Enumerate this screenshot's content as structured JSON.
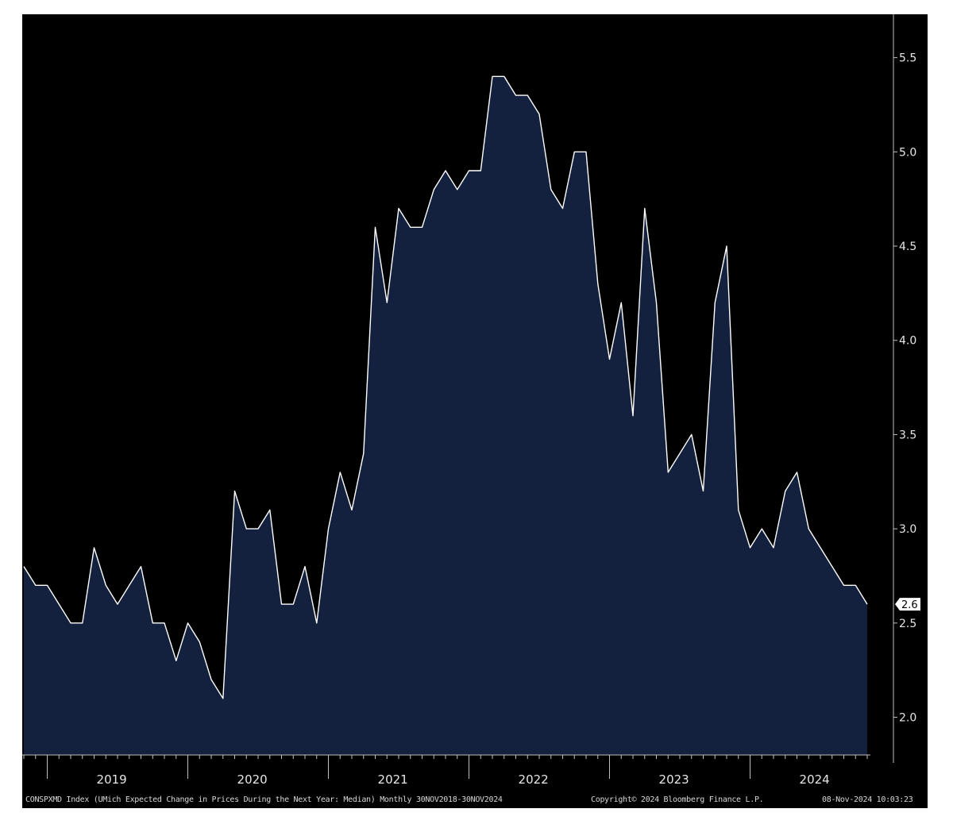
{
  "chart_data": {
    "type": "area",
    "frequency": "Monthly",
    "x_start": "2018-11",
    "x_end": "2024-11",
    "x_tick_labels": [
      "2019",
      "2020",
      "2021",
      "2022",
      "2023",
      "2024"
    ],
    "y_ticks": [
      2.0,
      2.5,
      3.0,
      3.5,
      4.0,
      4.5,
      5.0,
      5.5
    ],
    "ylim": [
      1.8,
      5.73
    ],
    "last_value_label": "2.6",
    "grid": false,
    "series": [
      {
        "values": [
          2.8,
          2.7,
          2.7,
          2.6,
          2.5,
          2.5,
          2.9,
          2.7,
          2.6,
          2.7,
          2.8,
          2.5,
          2.5,
          2.3,
          2.5,
          2.4,
          2.2,
          2.1,
          3.2,
          3.0,
          3.0,
          3.1,
          2.6,
          2.6,
          2.8,
          2.5,
          3.0,
          3.3,
          3.1,
          3.4,
          4.6,
          4.2,
          4.7,
          4.6,
          4.6,
          4.8,
          4.9,
          4.8,
          4.9,
          4.9,
          5.4,
          5.4,
          5.3,
          5.3,
          5.2,
          4.8,
          4.7,
          5.0,
          5.0,
          4.3,
          3.9,
          4.2,
          3.6,
          4.7,
          4.2,
          3.3,
          3.4,
          3.5,
          3.2,
          4.2,
          4.5,
          3.1,
          2.9,
          3.0,
          2.9,
          3.2,
          3.3,
          3.0,
          2.9,
          2.8,
          2.7,
          2.7,
          2.6
        ]
      }
    ]
  },
  "footer": {
    "description": "CONSPXMD Index (UMich Expected Change in Prices During the Next Year: Median)  Monthly 30NOV2018-30NOV2024",
    "copyright": "Copyright© 2024 Bloomberg Finance L.P.",
    "timestamp": "08-Nov-2024 10:03:23"
  },
  "colors": {
    "background": "#000000",
    "area_fill": "#13213f",
    "line": "#ffffff",
    "axis": "#bfbfbf",
    "text": "#e6e6e6"
  }
}
